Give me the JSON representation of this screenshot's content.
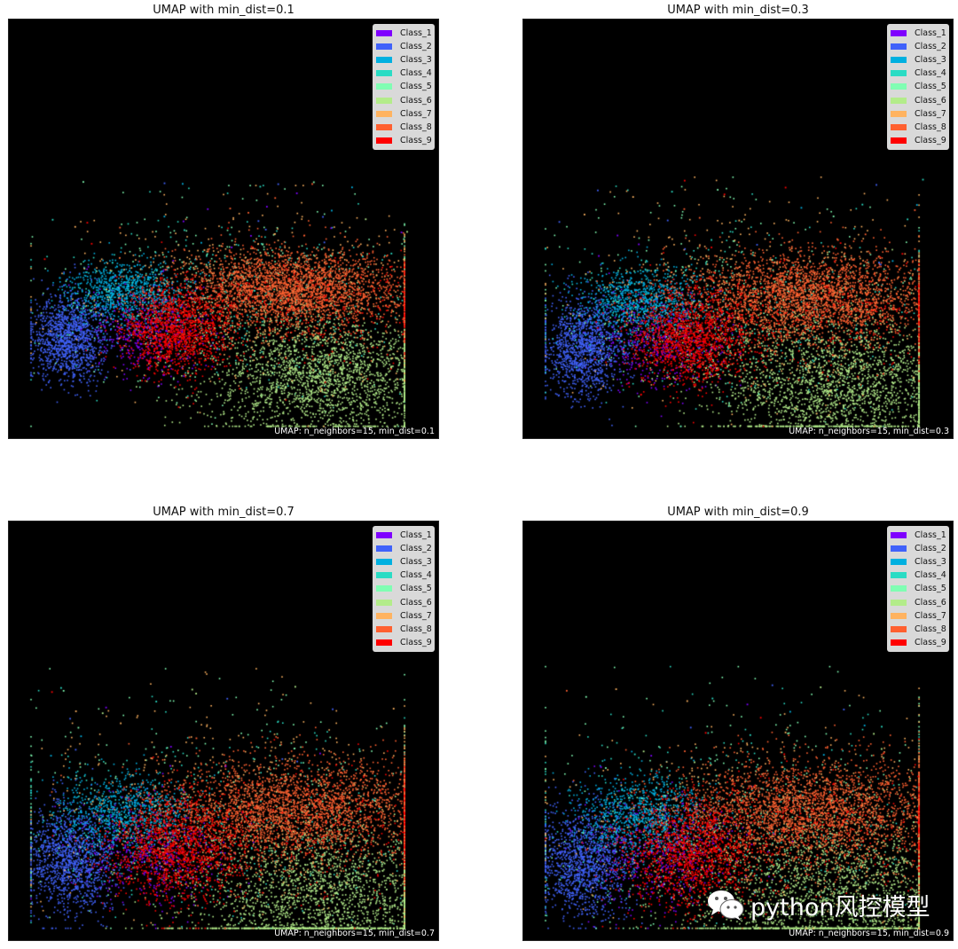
{
  "chart_data": [
    {
      "type": "scatter",
      "title": "UMAP with min_dist=0.1",
      "annotation": "UMAP: n_neighbors=15, min_dist=0.1",
      "legend": "top-right",
      "spread": 0.55,
      "outliers": 45
    },
    {
      "type": "scatter",
      "title": "UMAP with min_dist=0.3",
      "annotation": "UMAP: n_neighbors=15, min_dist=0.3",
      "legend": "top-right",
      "spread": 0.75,
      "outliers": 45
    },
    {
      "type": "scatter",
      "title": "UMAP with min_dist=0.7",
      "annotation": "UMAP: n_neighbors=15, min_dist=0.7",
      "legend": "top-right",
      "spread": 1.0,
      "outliers": 30
    },
    {
      "type": "scatter",
      "title": "UMAP with min_dist=0.9",
      "annotation": "UMAP: n_neighbors=15, min_dist=0.9",
      "legend": "top-right",
      "spread": 1.05,
      "outliers": 30
    }
  ],
  "classes": [
    {
      "name": "Class_1",
      "color": "#7f00ff"
    },
    {
      "name": "Class_2",
      "color": "#4062fa"
    },
    {
      "name": "Class_3",
      "color": "#00b0e0"
    },
    {
      "name": "Class_4",
      "color": "#2adcc4"
    },
    {
      "name": "Class_5",
      "color": "#80feb3"
    },
    {
      "name": "Class_6",
      "color": "#b3ec8a"
    },
    {
      "name": "Class_7",
      "color": "#ffb360"
    },
    {
      "name": "Class_8",
      "color": "#ff6030"
    },
    {
      "name": "Class_9",
      "color": "#ff0000"
    }
  ],
  "background": "#000000",
  "watermark": {
    "text": "python风控模型",
    "icon": "wechat-icon"
  }
}
